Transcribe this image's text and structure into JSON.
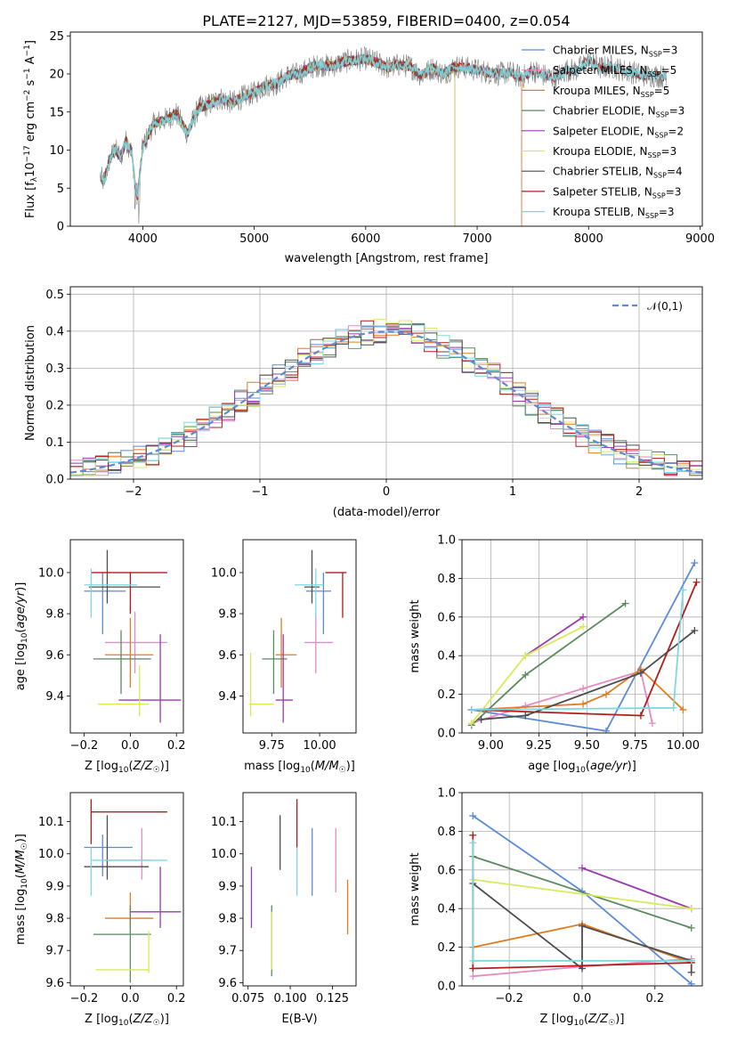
{
  "figure_title": "PLATE=2127, MJD=53859, FIBERID=0400, z=0.054",
  "colors": {
    "Chabrier MILES": "#5b8bd8",
    "Salpeter MILES": "#e58ac3",
    "Kroupa MILES": "#e07b22",
    "Chabrier ELODIE": "#5a8a5e",
    "Salpeter ELODIE": "#9b3ab0",
    "Kroupa ELODIE": "#d6ea5a",
    "Chabrier STELIB": "#4d4d4d",
    "Salpeter STELIB": "#b31b1b",
    "Kroupa STELIB": "#7fd8e0",
    "data": "#808080",
    "normal": "#5b8bd8"
  },
  "chart_data": [
    {
      "id": "spectrum",
      "type": "line",
      "title": "PLATE=2127, MJD=53859, FIBERID=0400, z=0.054",
      "xlabel": "wavelength [Angstrom, rest frame]",
      "ylabel": "Flux [f_λ 10^-17 erg cm^-2 s^-1 A^-1]",
      "xlim": [
        3350,
        9020
      ],
      "ylim": [
        0,
        25.5
      ],
      "xticks": [
        4000,
        5000,
        6000,
        7000,
        8000,
        9000
      ],
      "yticks": [
        0,
        5,
        10,
        15,
        20,
        25
      ],
      "legend": {
        "placement": "right",
        "entries": [
          {
            "base": "Chabrier MILES, N",
            "sub": "SSP",
            "suffix": "=3"
          },
          {
            "base": "Salpeter MILES, N",
            "sub": "SSP",
            "suffix": "=5"
          },
          {
            "base": "Kroupa MILES, N",
            "sub": "SSP",
            "suffix": "=5"
          },
          {
            "base": "Chabrier ELODIE, N",
            "sub": "SSP",
            "suffix": "=3"
          },
          {
            "base": "Salpeter ELODIE, N",
            "sub": "SSP",
            "suffix": "=2"
          },
          {
            "base": "Kroupa ELODIE, N",
            "sub": "SSP",
            "suffix": "=3"
          },
          {
            "base": "Chabrier STELIB, N",
            "sub": "SSP",
            "suffix": "=4"
          },
          {
            "base": "Salpeter STELIB, N",
            "sub": "SSP",
            "suffix": "=3"
          },
          {
            "base": "Kroupa STELIB, N",
            "sub": "SSP",
            "suffix": "=3"
          }
        ]
      },
      "series": [
        {
          "name": "data",
          "x": [
            3620,
            3650,
            3700,
            3750,
            3800,
            3850,
            3900,
            3950,
            4000,
            4100,
            4200,
            4300,
            4400,
            4500,
            4600,
            4700,
            4800,
            4900,
            5000,
            5100,
            5200,
            5300,
            5400,
            5500,
            5600,
            5700,
            5800,
            5900,
            6000,
            6100,
            6200,
            6300,
            6400,
            6500,
            6600,
            6700,
            6800,
            6900,
            7000,
            7100,
            7200,
            7300,
            7400,
            7500,
            7600,
            7700,
            7800,
            7900,
            8000,
            8100,
            8200,
            8300,
            8400,
            8500,
            8600,
            8700
          ],
          "y": [
            6.5,
            5.8,
            8.5,
            10.2,
            9.0,
            11.2,
            9.8,
            3.5,
            10.5,
            13.5,
            14.0,
            14.8,
            12.2,
            15.5,
            16.0,
            16.8,
            16.2,
            17.0,
            17.5,
            18.5,
            18.7,
            19.8,
            20.0,
            20.8,
            21.2,
            21.0,
            21.6,
            21.8,
            22.0,
            21.5,
            20.8,
            21.2,
            21.0,
            19.8,
            20.8,
            20.0,
            21.0,
            20.8,
            20.5,
            20.2,
            20.0,
            20.2,
            19.5,
            20.5,
            19.8,
            19.5,
            20.5,
            20.5,
            21.8,
            20.8,
            21.0,
            20.5,
            20.2,
            19.8,
            19.8,
            19.6
          ]
        }
      ]
    },
    {
      "id": "residuals",
      "type": "line",
      "xlabel": "(data-model)/error",
      "ylabel": "Normed distribution",
      "xlim": [
        -2.5,
        2.5
      ],
      "ylim": [
        0,
        0.52
      ],
      "xticks": [
        -2,
        -1,
        0,
        1,
        2
      ],
      "yticks": [
        0.0,
        0.1,
        0.2,
        0.3,
        0.4,
        0.5
      ],
      "grid": true,
      "legend": {
        "placement": "top-right",
        "entries": [
          "𝒩(0,1)"
        ]
      },
      "series": [
        {
          "name": "𝒩(0,1)",
          "style": "dashed",
          "mean": 0,
          "sigma": 1
        }
      ]
    },
    {
      "id": "age_vs_Z",
      "type": "scatter",
      "xlabel": "Z [log10(Z/Z☉)]",
      "ylabel": "age [log10(age/yr)]",
      "xlim": [
        -0.26,
        0.23
      ],
      "ylim": [
        9.22,
        10.16
      ],
      "xticks": [
        -0.2,
        0.0,
        0.2
      ],
      "yticks": [
        9.4,
        9.6,
        9.8,
        10.0
      ],
      "points": [
        {
          "model": "Chabrier MILES",
          "x": -0.12,
          "y": 9.91,
          "xlo": -0.2,
          "xhi": -0.02,
          "ylo": 9.7,
          "yhi": 10.0
        },
        {
          "model": "Salpeter MILES",
          "x": 0.02,
          "y": 9.66,
          "xlo": -0.11,
          "xhi": 0.16,
          "ylo": 9.51,
          "yhi": 9.81
        },
        {
          "model": "Kroupa MILES",
          "x": 0.0,
          "y": 9.6,
          "xlo": -0.11,
          "xhi": 0.1,
          "ylo": 9.44,
          "yhi": 9.78
        },
        {
          "model": "Chabrier ELODIE",
          "x": -0.04,
          "y": 9.58,
          "xlo": -0.16,
          "xhi": 0.09,
          "ylo": 9.41,
          "yhi": 9.72
        },
        {
          "model": "Salpeter ELODIE",
          "x": 0.13,
          "y": 9.38,
          "xlo": -0.05,
          "xhi": 0.22,
          "ylo": 9.27,
          "yhi": 9.7
        },
        {
          "model": "Kroupa ELODIE",
          "x": 0.04,
          "y": 9.36,
          "xlo": -0.14,
          "xhi": 0.08,
          "ylo": 9.3,
          "yhi": 9.55
        },
        {
          "model": "Chabrier STELIB",
          "x": -0.1,
          "y": 9.93,
          "xlo": -0.18,
          "xhi": 0.13,
          "ylo": 9.85,
          "yhi": 10.11
        },
        {
          "model": "Salpeter STELIB",
          "x": 0.0,
          "y": 10.0,
          "xlo": -0.17,
          "xhi": 0.16,
          "ylo": 9.8,
          "yhi": 10.0
        },
        {
          "model": "Kroupa STELIB",
          "x": -0.17,
          "y": 9.94,
          "xlo": -0.2,
          "xhi": 0.03,
          "ylo": 9.78,
          "yhi": 10.02
        }
      ]
    },
    {
      "id": "age_vs_mass",
      "type": "scatter",
      "xlabel": "mass [log10(M/M☉)]",
      "ylabel": "",
      "xlim": [
        9.6,
        10.19
      ],
      "ylim": [
        9.22,
        10.16
      ],
      "xticks": [
        9.75,
        10.0
      ],
      "yticks": [
        9.4,
        9.6,
        9.8,
        10.0
      ],
      "points": [
        {
          "model": "Chabrier MILES",
          "x": 10.02,
          "y": 9.91,
          "xlo": 9.93,
          "xhi": 10.06,
          "ylo": 9.7,
          "yhi": 10.0
        },
        {
          "model": "Salpeter MILES",
          "x": 9.98,
          "y": 9.66,
          "xlo": 9.92,
          "xhi": 10.07,
          "ylo": 9.51,
          "yhi": 9.81
        },
        {
          "model": "Kroupa MILES",
          "x": 9.8,
          "y": 9.6,
          "xlo": 9.77,
          "xhi": 9.88,
          "ylo": 9.44,
          "yhi": 9.78
        },
        {
          "model": "Chabrier ELODIE",
          "x": 9.76,
          "y": 9.58,
          "xlo": 9.7,
          "xhi": 9.83,
          "ylo": 9.41,
          "yhi": 9.72
        },
        {
          "model": "Salpeter ELODIE",
          "x": 9.81,
          "y": 9.38,
          "xlo": 9.77,
          "xhi": 9.86,
          "ylo": 9.27,
          "yhi": 9.7
        },
        {
          "model": "Kroupa ELODIE",
          "x": 9.64,
          "y": 9.36,
          "xlo": 9.63,
          "xhi": 9.76,
          "ylo": 9.3,
          "yhi": 9.61
        },
        {
          "model": "Chabrier STELIB",
          "x": 9.96,
          "y": 9.93,
          "xlo": 9.92,
          "xhi": 10.0,
          "ylo": 9.85,
          "yhi": 10.11
        },
        {
          "model": "Salpeter STELIB",
          "x": 10.12,
          "y": 10.0,
          "xlo": 10.03,
          "xhi": 10.14,
          "ylo": 9.78,
          "yhi": 10.0
        },
        {
          "model": "Kroupa STELIB",
          "x": 9.98,
          "y": 9.94,
          "xlo": 9.87,
          "xhi": 10.02,
          "ylo": 9.78,
          "yhi": 10.02
        }
      ]
    },
    {
      "id": "weight_vs_age",
      "type": "line",
      "xlabel": "age [log10(age/yr)]",
      "ylabel": "mass weight",
      "xlim": [
        8.85,
        10.1
      ],
      "ylim": [
        0,
        1.0
      ],
      "xticks": [
        9.0,
        9.25,
        9.5,
        9.75,
        10.0
      ],
      "yticks": [
        0.0,
        0.2,
        0.4,
        0.6,
        0.8,
        1.0
      ],
      "grid": true,
      "series": [
        {
          "name": "Chabrier MILES",
          "x": [
            8.9,
            9.6,
            10.06
          ],
          "y": [
            0.12,
            0.01,
            0.88
          ]
        },
        {
          "name": "Salpeter MILES",
          "x": [
            8.9,
            9.18,
            9.48,
            9.78,
            9.84
          ],
          "y": [
            0.05,
            0.14,
            0.23,
            0.32,
            0.05
          ]
        },
        {
          "name": "Kroupa MILES",
          "x": [
            8.9,
            9.48,
            9.6,
            9.78,
            10.0
          ],
          "y": [
            0.12,
            0.15,
            0.2,
            0.33,
            0.12
          ]
        },
        {
          "name": "Chabrier ELODIE",
          "x": [
            8.9,
            9.18,
            9.7
          ],
          "y": [
            0.04,
            0.3,
            0.67
          ]
        },
        {
          "name": "Salpeter ELODIE",
          "x": [
            9.18,
            9.48
          ],
          "y": [
            0.4,
            0.6
          ]
        },
        {
          "name": "Kroupa ELODIE",
          "x": [
            8.9,
            9.18,
            9.48
          ],
          "y": [
            0.05,
            0.4,
            0.55
          ]
        },
        {
          "name": "Chabrier STELIB",
          "x": [
            8.95,
            9.18,
            9.78,
            10.06
          ],
          "y": [
            0.07,
            0.09,
            0.31,
            0.53
          ]
        },
        {
          "name": "Salpeter STELIB",
          "x": [
            8.9,
            9.78,
            10.07
          ],
          "y": [
            0.12,
            0.09,
            0.78
          ]
        },
        {
          "name": "Kroupa STELIB",
          "x": [
            8.9,
            9.95,
            10.0
          ],
          "y": [
            0.12,
            0.13,
            0.74
          ]
        }
      ]
    },
    {
      "id": "mass_vs_Z",
      "type": "scatter",
      "xlabel": "Z [log10(Z/Z☉)]",
      "ylabel": "mass [log10(M/M☉)]",
      "xlim": [
        -0.26,
        0.23
      ],
      "ylim": [
        9.59,
        10.19
      ],
      "xticks": [
        -0.2,
        0.0,
        0.2
      ],
      "yticks": [
        9.6,
        9.7,
        9.8,
        9.9,
        10.0,
        10.1
      ],
      "points": [
        {
          "model": "Chabrier MILES",
          "x": -0.12,
          "y": 10.02,
          "xlo": -0.2,
          "xhi": 0.01,
          "ylo": 9.93,
          "yhi": 10.06
        },
        {
          "model": "Salpeter MILES",
          "x": 0.05,
          "y": 9.98,
          "xlo": -0.11,
          "xhi": 0.09,
          "ylo": 9.92,
          "yhi": 10.08
        },
        {
          "model": "Kroupa MILES",
          "x": 0.0,
          "y": 9.8,
          "xlo": -0.11,
          "xhi": 0.1,
          "ylo": 9.77,
          "yhi": 9.88
        },
        {
          "model": "Chabrier ELODIE",
          "x": 0.0,
          "y": 9.75,
          "xlo": -0.16,
          "xhi": 0.09,
          "ylo": 9.6,
          "yhi": 9.84
        },
        {
          "model": "Salpeter ELODIE",
          "x": 0.13,
          "y": 9.82,
          "xlo": 0.0,
          "xhi": 0.22,
          "ylo": 9.77,
          "yhi": 9.96
        },
        {
          "model": "Kroupa ELODIE",
          "x": 0.08,
          "y": 9.64,
          "xlo": -0.15,
          "xhi": 0.08,
          "ylo": 9.63,
          "yhi": 9.76
        },
        {
          "model": "Chabrier STELIB",
          "x": -0.1,
          "y": 9.96,
          "xlo": -0.2,
          "xhi": 0.08,
          "ylo": 9.92,
          "yhi": 10.12
        },
        {
          "model": "Salpeter STELIB",
          "x": -0.17,
          "y": 10.13,
          "xlo": -0.17,
          "xhi": 0.16,
          "ylo": 10.03,
          "yhi": 10.17
        },
        {
          "model": "Kroupa STELIB",
          "x": -0.17,
          "y": 9.98,
          "xlo": -0.17,
          "xhi": 0.16,
          "ylo": 9.87,
          "yhi": 10.02
        }
      ]
    },
    {
      "id": "mass_vs_ebv",
      "type": "scatter",
      "xlabel": "E(B-V)",
      "ylabel": "",
      "xlim": [
        0.072,
        0.139
      ],
      "ylim": [
        9.59,
        10.19
      ],
      "xticks": [
        0.075,
        0.1,
        0.125
      ],
      "yticks": [
        9.6,
        9.7,
        9.8,
        9.9,
        10.0,
        10.1
      ],
      "points": [
        {
          "model": "Chabrier MILES",
          "x": 0.113,
          "y": 10.02,
          "ylo": 9.87,
          "yhi": 10.08
        },
        {
          "model": "Salpeter MILES",
          "x": 0.127,
          "y": 9.98,
          "ylo": 9.88,
          "yhi": 10.08
        },
        {
          "model": "Kroupa MILES",
          "x": 0.134,
          "y": 9.85,
          "ylo": 9.75,
          "yhi": 9.92
        },
        {
          "model": "Chabrier ELODIE",
          "x": 0.089,
          "y": 9.75,
          "ylo": 9.62,
          "yhi": 9.84
        },
        {
          "model": "Salpeter ELODIE",
          "x": 0.077,
          "y": 9.86,
          "ylo": 9.77,
          "yhi": 9.96
        },
        {
          "model": "Kroupa ELODIE",
          "x": 0.089,
          "y": 9.72,
          "ylo": 9.64,
          "yhi": 9.82
        },
        {
          "model": "Chabrier STELIB",
          "x": 0.094,
          "y": 10.05,
          "ylo": 9.95,
          "yhi": 10.12
        },
        {
          "model": "Salpeter STELIB",
          "x": 0.104,
          "y": 10.13,
          "ylo": 10.02,
          "yhi": 10.17
        },
        {
          "model": "Kroupa STELIB",
          "x": 0.104,
          "y": 9.97,
          "ylo": 9.87,
          "yhi": 10.02
        }
      ]
    },
    {
      "id": "weight_vs_Z",
      "type": "line",
      "xlabel": "Z [log10(Z/Z☉)]",
      "ylabel": "mass weight",
      "xlim": [
        -0.33,
        0.33
      ],
      "ylim": [
        0,
        1.0
      ],
      "xticks": [
        -0.2,
        0.0,
        0.2
      ],
      "yticks": [
        0.0,
        0.2,
        0.4,
        0.6,
        0.8,
        1.0
      ],
      "grid": true,
      "series": [
        {
          "name": "Chabrier MILES",
          "x": [
            -0.3,
            0.0,
            0.3
          ],
          "y": [
            0.88,
            0.49,
            0.01
          ]
        },
        {
          "name": "Salpeter MILES",
          "x": [
            -0.3,
            0.0,
            0.3
          ],
          "y": [
            0.05,
            0.1,
            0.14
          ]
        },
        {
          "name": "Kroupa MILES",
          "x": [
            -0.3,
            0.0,
            0.3
          ],
          "y": [
            0.2,
            0.32,
            0.12
          ]
        },
        {
          "name": "Chabrier ELODIE",
          "x": [
            -0.3,
            0.3
          ],
          "y": [
            0.67,
            0.3
          ]
        },
        {
          "name": "Salpeter ELODIE",
          "x": [
            0.0,
            0.3
          ],
          "y": [
            0.61,
            0.4
          ]
        },
        {
          "name": "Kroupa ELODIE",
          "x": [
            -0.3,
            0.3
          ],
          "y": [
            0.55,
            0.4
          ]
        },
        {
          "name": "Chabrier STELIB",
          "x": [
            -0.3,
            0.0,
            0.0,
            0.3,
            0.3
          ],
          "y": [
            0.53,
            0.09,
            0.31,
            0.13,
            0.07
          ]
        },
        {
          "name": "Salpeter STELIB",
          "x": [
            -0.3,
            -0.3,
            0.3
          ],
          "y": [
            0.78,
            0.09,
            0.12
          ]
        },
        {
          "name": "Kroupa STELIB",
          "x": [
            -0.3,
            -0.3,
            0.3
          ],
          "y": [
            0.74,
            0.13,
            0.13
          ]
        }
      ]
    }
  ]
}
